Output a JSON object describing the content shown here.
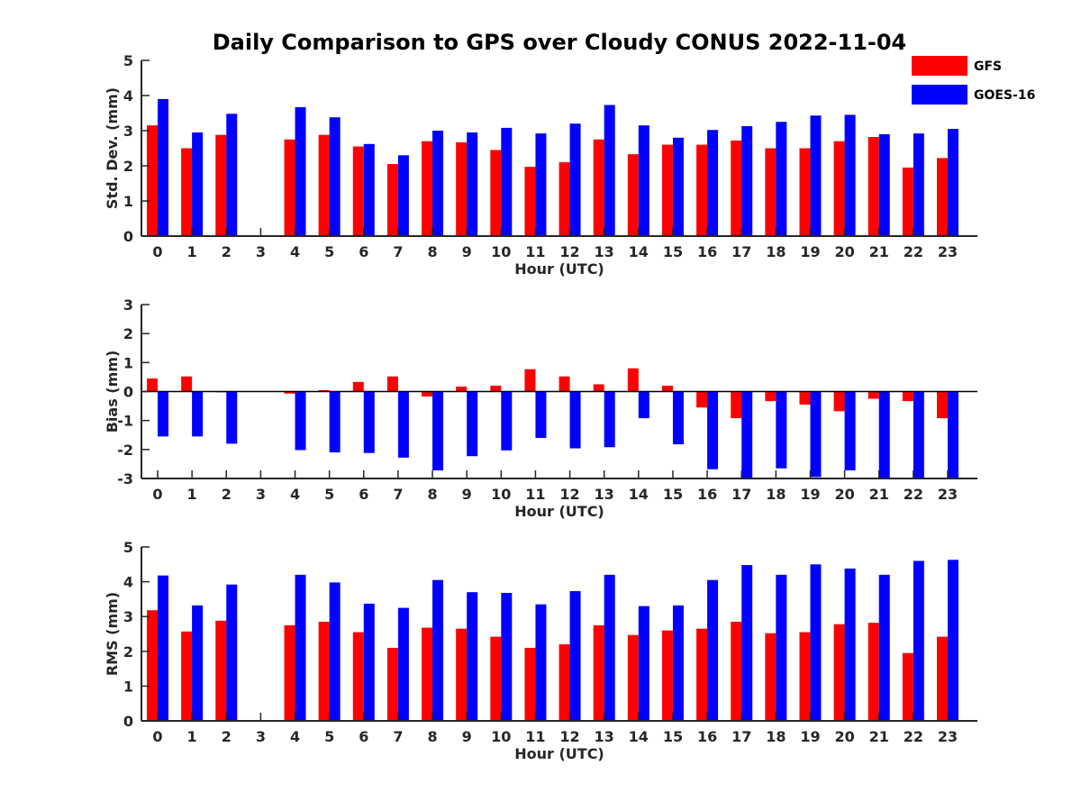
{
  "chart_data": {
    "type": "bar",
    "title": "Daily Comparison to GPS over Cloudy CONUS 2022-11-04",
    "legend": {
      "placement": "top-right",
      "entries": [
        {
          "name": "GFS",
          "color": "#ff0000"
        },
        {
          "name": "GOES-16",
          "color": "#0000ff"
        }
      ]
    },
    "categories": [
      "0",
      "1",
      "2",
      "3",
      "4",
      "5",
      "6",
      "7",
      "8",
      "9",
      "10",
      "11",
      "12",
      "13",
      "14",
      "15",
      "16",
      "17",
      "18",
      "19",
      "20",
      "21",
      "22",
      "23"
    ],
    "panels": [
      {
        "id": "std",
        "ylabel": "Std. Dev. (mm)",
        "xlabel": "Hour (UTC)",
        "ylim": [
          0,
          5
        ],
        "yticks": [
          "0",
          "1",
          "2",
          "3",
          "4",
          "5"
        ],
        "series": [
          {
            "name": "GFS",
            "color": "#ff0000",
            "values": [
              3.15,
              2.5,
              2.88,
              null,
              2.75,
              2.88,
              2.55,
              2.05,
              2.7,
              2.67,
              2.45,
              1.97,
              2.1,
              2.75,
              2.33,
              2.6,
              2.6,
              2.72,
              2.5,
              2.5,
              2.7,
              2.82,
              1.95,
              2.22
            ]
          },
          {
            "name": "GOES-16",
            "color": "#0000ff",
            "values": [
              3.9,
              2.95,
              3.48,
              null,
              3.67,
              3.38,
              2.62,
              2.3,
              3.0,
              2.95,
              3.08,
              2.92,
              3.2,
              3.73,
              3.15,
              2.8,
              3.02,
              3.13,
              3.25,
              3.43,
              3.45,
              2.9,
              2.92,
              3.05
            ]
          }
        ]
      },
      {
        "id": "bias",
        "ylabel": "Bias (mm)",
        "xlabel": "Hour (UTC)",
        "ylim": [
          -3,
          3
        ],
        "yticks": [
          "-3",
          "-2",
          "-1",
          "0",
          "1",
          "2",
          "3"
        ],
        "series": [
          {
            "name": "GFS",
            "color": "#ff0000",
            "values": [
              0.45,
              0.52,
              0.0,
              null,
              -0.07,
              0.05,
              0.33,
              0.52,
              -0.17,
              0.17,
              0.2,
              0.77,
              0.52,
              0.25,
              0.8,
              0.2,
              -0.55,
              -0.92,
              -0.33,
              -0.45,
              -0.68,
              -0.25,
              -0.33,
              -0.92
            ]
          },
          {
            "name": "GOES-16",
            "color": "#0000ff",
            "values": [
              -1.55,
              -1.55,
              -1.8,
              null,
              -2.02,
              -2.1,
              -2.12,
              -2.28,
              -2.72,
              -2.23,
              -2.03,
              -1.6,
              -1.96,
              -1.92,
              -0.92,
              -1.82,
              -2.68,
              -3.0,
              -2.65,
              -2.95,
              -2.72,
              -3.0,
              -3.0,
              -3.0
            ]
          }
        ]
      },
      {
        "id": "rms",
        "ylabel": "RMS (mm)",
        "xlabel": "Hour (UTC)",
        "ylim": [
          0,
          5
        ],
        "yticks": [
          "0",
          "1",
          "2",
          "3",
          "4",
          "5"
        ],
        "series": [
          {
            "name": "GFS",
            "color": "#ff0000",
            "values": [
              3.18,
              2.57,
              2.88,
              null,
              2.75,
              2.85,
              2.55,
              2.1,
              2.68,
              2.65,
              2.42,
              2.1,
              2.2,
              2.75,
              2.47,
              2.6,
              2.65,
              2.85,
              2.52,
              2.55,
              2.78,
              2.82,
              1.95,
              2.42
            ]
          },
          {
            "name": "GOES-16",
            "color": "#0000ff",
            "values": [
              4.18,
              3.32,
              3.92,
              null,
              4.2,
              3.98,
              3.37,
              3.25,
              4.05,
              3.7,
              3.68,
              3.35,
              3.73,
              4.2,
              3.3,
              3.32,
              4.05,
              4.48,
              4.2,
              4.5,
              4.38,
              4.2,
              4.6,
              4.63
            ]
          }
        ]
      }
    ]
  }
}
